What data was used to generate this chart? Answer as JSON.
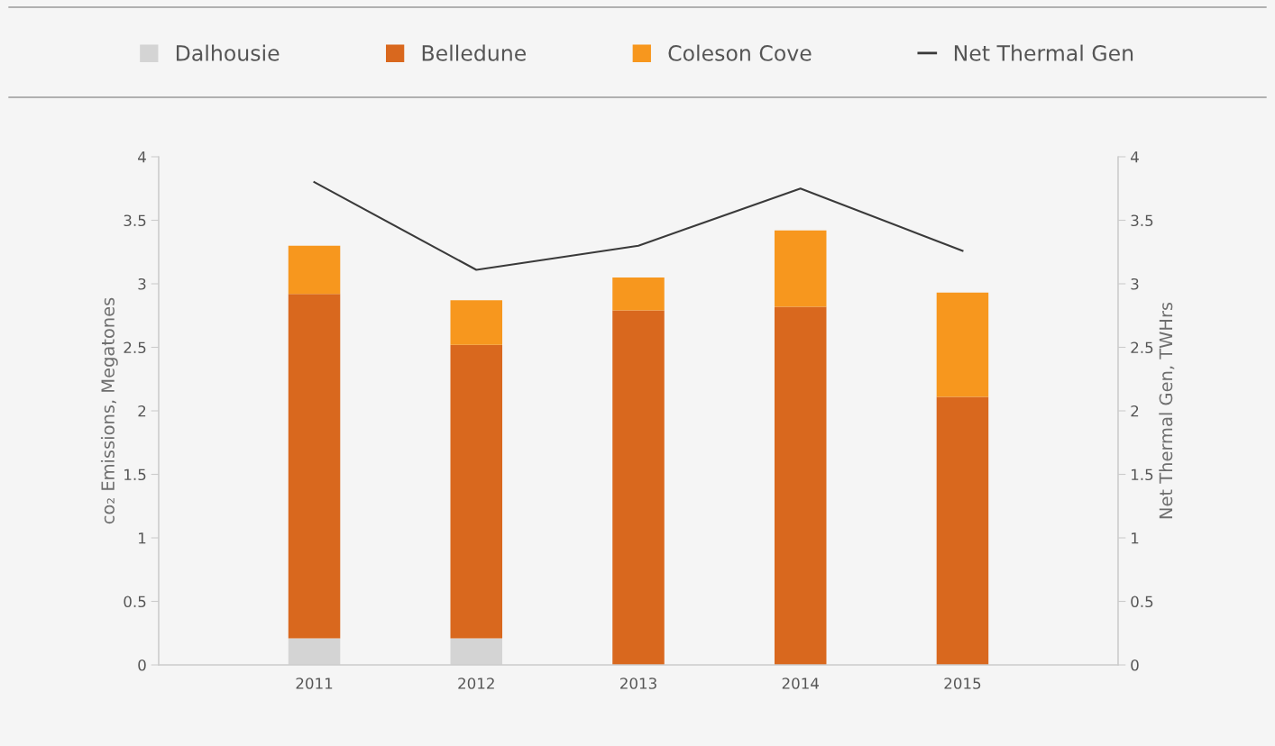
{
  "chart_data": {
    "type": "bar",
    "stacked": true,
    "categories": [
      "2011",
      "2012",
      "2013",
      "2014",
      "2015"
    ],
    "ylabel": "co₂ Emissions, Megatones",
    "y2label": "Net Thermal Gen, TWHrs",
    "ylim": [
      0,
      4
    ],
    "yticks": [
      0,
      {
        "value": 0.5,
        "label": "0.5"
      },
      1,
      {
        "value": 1.5,
        "label": "1.5"
      },
      2,
      {
        "value": 2.5,
        "label": "2.5"
      },
      3,
      {
        "value": 3.5,
        "label": "3.5"
      },
      4
    ],
    "y2lim": [
      0,
      4
    ],
    "y2ticks": [
      0,
      {
        "value": 0.5,
        "label": "0.5"
      },
      1,
      {
        "value": 1.5,
        "label": "1.5"
      },
      2,
      {
        "value": 2.5,
        "label": "2.5"
      },
      3,
      {
        "value": 3.5,
        "label": "3.5"
      },
      4
    ],
    "legend": "top",
    "grid": false,
    "series": [
      {
        "name": "Dalhousie",
        "color": "#d4d4d4",
        "values": [
          0.21,
          0.21,
          0,
          0,
          0
        ]
      },
      {
        "name": "Belledune",
        "color": "#d9681e",
        "values": [
          2.71,
          2.31,
          2.79,
          2.82,
          2.11
        ]
      },
      {
        "name": "Coleson Cove",
        "color": "#f7971e",
        "values": [
          0.38,
          0.35,
          0.26,
          0.6,
          0.82
        ]
      },
      {
        "name": "Net Thermal Gen",
        "type": "line",
        "axis": "y2",
        "color": "#3a3a3a",
        "values": [
          3.8,
          3.11,
          3.3,
          3.75,
          3.26
        ]
      }
    ]
  }
}
